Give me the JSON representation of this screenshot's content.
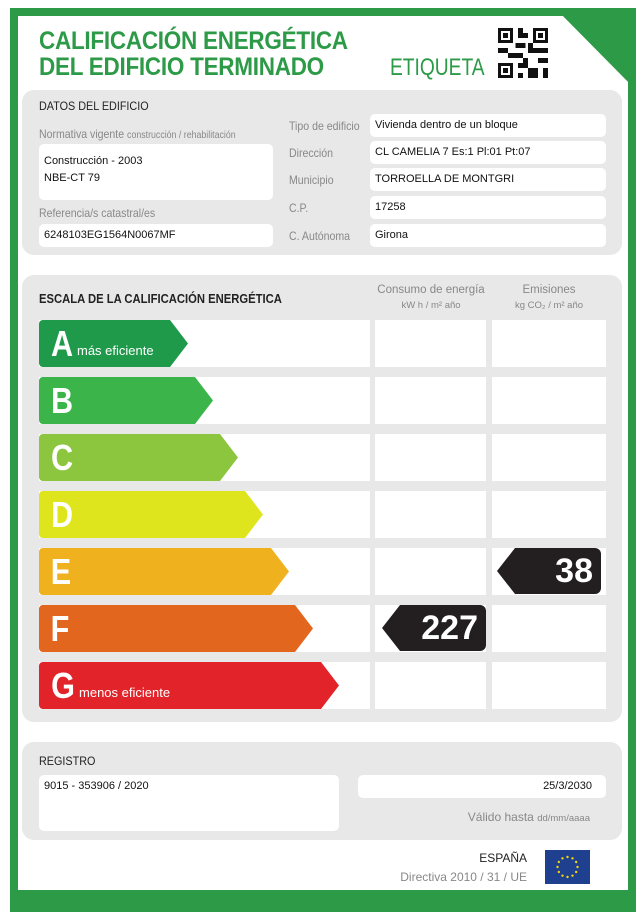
{
  "header": {
    "title_line1": "CALIFICACIÓN ENERGÉTICA",
    "title_line2": "DEL EDIFICIO TERMINADO",
    "label": "ETIQUETA",
    "qr_icon": "qr-code-icon"
  },
  "building": {
    "section_title": "DATOS DEL EDIFICIO",
    "normativa_label": "Normativa vigente",
    "normativa_sublabel": "construcción / rehabilitación",
    "normativa_line1": "Construcción - 2003",
    "normativa_line2": "NBE-CT 79",
    "catastral_label": "Referencia/s catastral/es",
    "catastral_value": "6248103EG1564N0067MF",
    "fields": [
      {
        "label": "Tipo de edificio",
        "value": "Vivienda dentro de un bloque"
      },
      {
        "label": "Dirección",
        "value": "CL CAMELIA 7 Es:1 Pl:01 Pt:07"
      },
      {
        "label": "Municipio",
        "value": "TORROELLA DE MONTGRI"
      },
      {
        "label": "C.P.",
        "value": "17258"
      },
      {
        "label": "C. Autónoma",
        "value": "Girona"
      }
    ]
  },
  "scale": {
    "title": "ESCALA DE LA CALIFICACIÓN ENERGÉTICA",
    "energy_header": "Consumo de energía",
    "energy_unit": "kW h / m² año",
    "emissions_header": "Emisiones",
    "emissions_unit": "kg CO₂ / m² año",
    "classes": [
      {
        "letter": "A",
        "sub": "más eficiente",
        "color": "#1f9a4a"
      },
      {
        "letter": "B",
        "sub": "",
        "color": "#3bb449"
      },
      {
        "letter": "C",
        "sub": "",
        "color": "#8cc63e"
      },
      {
        "letter": "D",
        "sub": "",
        "color": "#dfe51c"
      },
      {
        "letter": "E",
        "sub": "",
        "color": "#f0b11e"
      },
      {
        "letter": "F",
        "sub": "",
        "color": "#e3661f"
      },
      {
        "letter": "G",
        "sub": "menos eficiente",
        "color": "#e2242a"
      }
    ],
    "energy_rating": {
      "class": "F",
      "value": "227"
    },
    "emissions_rating": {
      "class": "E",
      "value": "38"
    }
  },
  "registry": {
    "title": "REGISTRO",
    "number": "9015 - 353906 / 2020",
    "valid_date": "25/3/2030",
    "valid_label": "Válido hasta",
    "valid_format": "dd/mm/aaaa"
  },
  "footer": {
    "country": "ESPAÑA",
    "directive": "Directiva 2010 / 31 / UE",
    "flag_icon": "eu-flag-icon"
  }
}
